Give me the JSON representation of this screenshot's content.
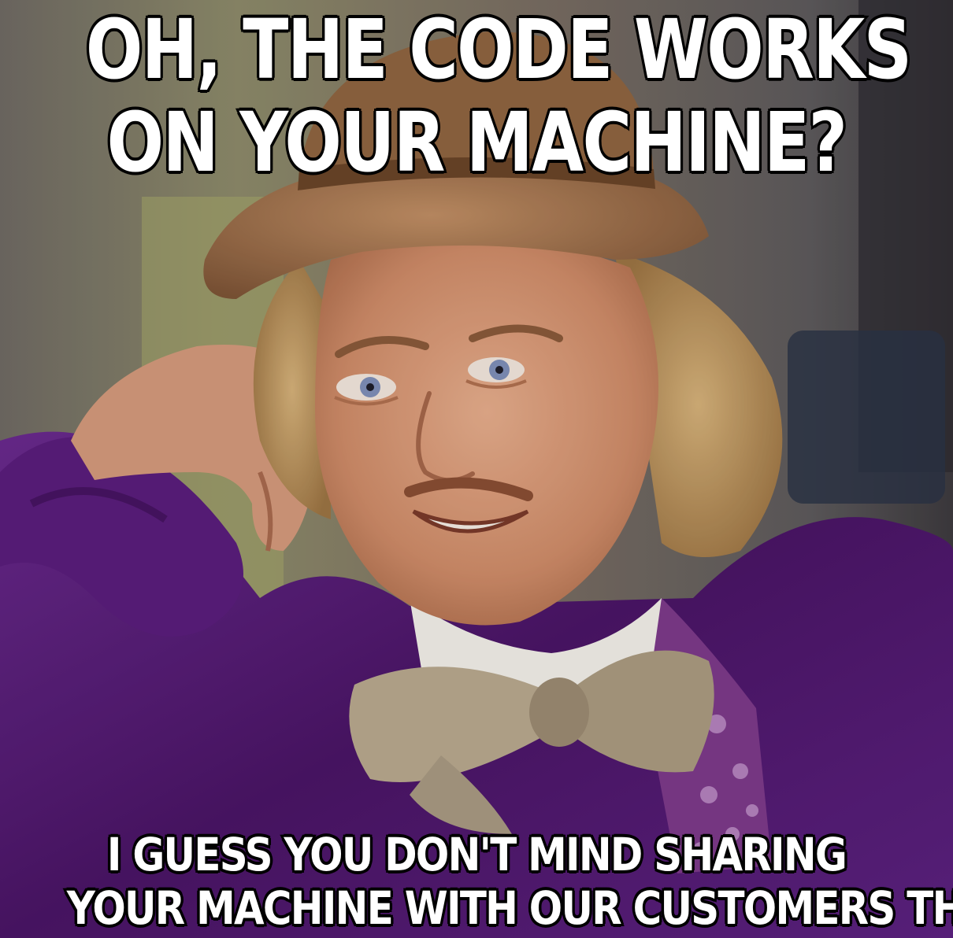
{
  "meme": {
    "top_text": [
      "OH, THE CODE WORKS",
      "ON YOUR MACHINE?"
    ],
    "bottom_text": [
      "I GUESS YOU DON'T MIND SHARING",
      "YOUR MACHINE WITH OUR CUSTOMERS THEN."
    ]
  },
  "colors": {
    "caption_fill": "#ffffff",
    "caption_outline": "#000000",
    "jacket": "#5a1f7a",
    "hat": "#a8774f",
    "bow_tie": "#b9a98f",
    "skin": "#d89a7a",
    "hair": "#b88f55"
  }
}
